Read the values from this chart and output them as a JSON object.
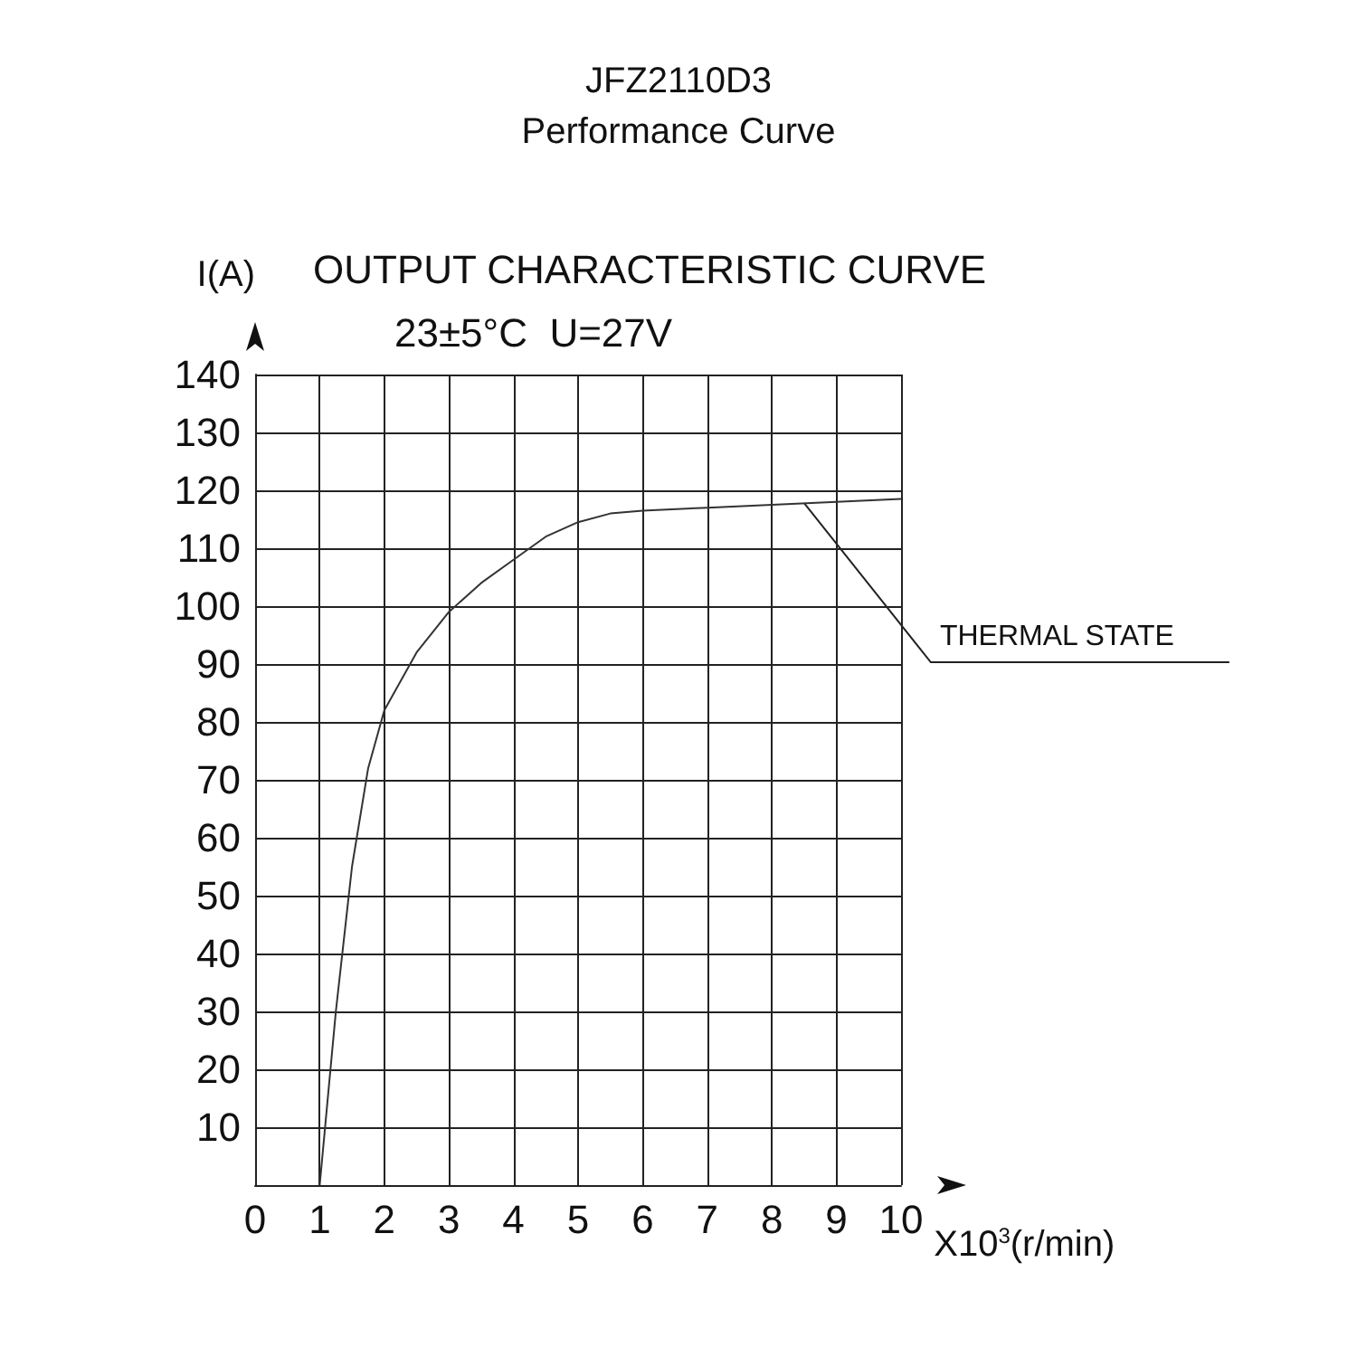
{
  "chart_data": {
    "type": "line",
    "title": "JFZ2110D3",
    "subtitle": "Performance Curve",
    "xlabel": "X10$^{3}$(r/min)",
    "ylabel": "I(A)",
    "x": [
      1,
      1.1,
      1.25,
      1.5,
      1.75,
      2,
      2.5,
      3,
      3.5,
      4,
      4.5,
      5,
      5.5,
      6,
      7,
      8,
      9,
      10
    ],
    "series": [
      {
        "color": "#333333",
        "values": [
          0,
          12,
          30,
          55,
          72,
          82,
          92,
          99,
          104,
          108,
          112,
          114.5,
          116,
          116.5,
          117,
          117.5,
          118,
          118.5
        ]
      }
    ],
    "xlim": [
      0,
      10
    ],
    "xticks": [
      0,
      1,
      2,
      3,
      4,
      5,
      6,
      7,
      8,
      9,
      10
    ],
    "ylim": [
      0,
      140
    ],
    "yticks": [
      {
        "value": 0,
        "label": null
      },
      10,
      20,
      30,
      40,
      50,
      60,
      70,
      80,
      90,
      100,
      110,
      120,
      130,
      140
    ],
    "grid": true,
    "marker": "none",
    "line_style": "solid",
    "annotations": [
      "OUTPUT CHARACTERISTIC CURVE",
      "23±5°C  U=27V",
      {
        "text": "THERMAL STATE",
        "x": 8.5,
        "y": 117.8
      }
    ]
  }
}
